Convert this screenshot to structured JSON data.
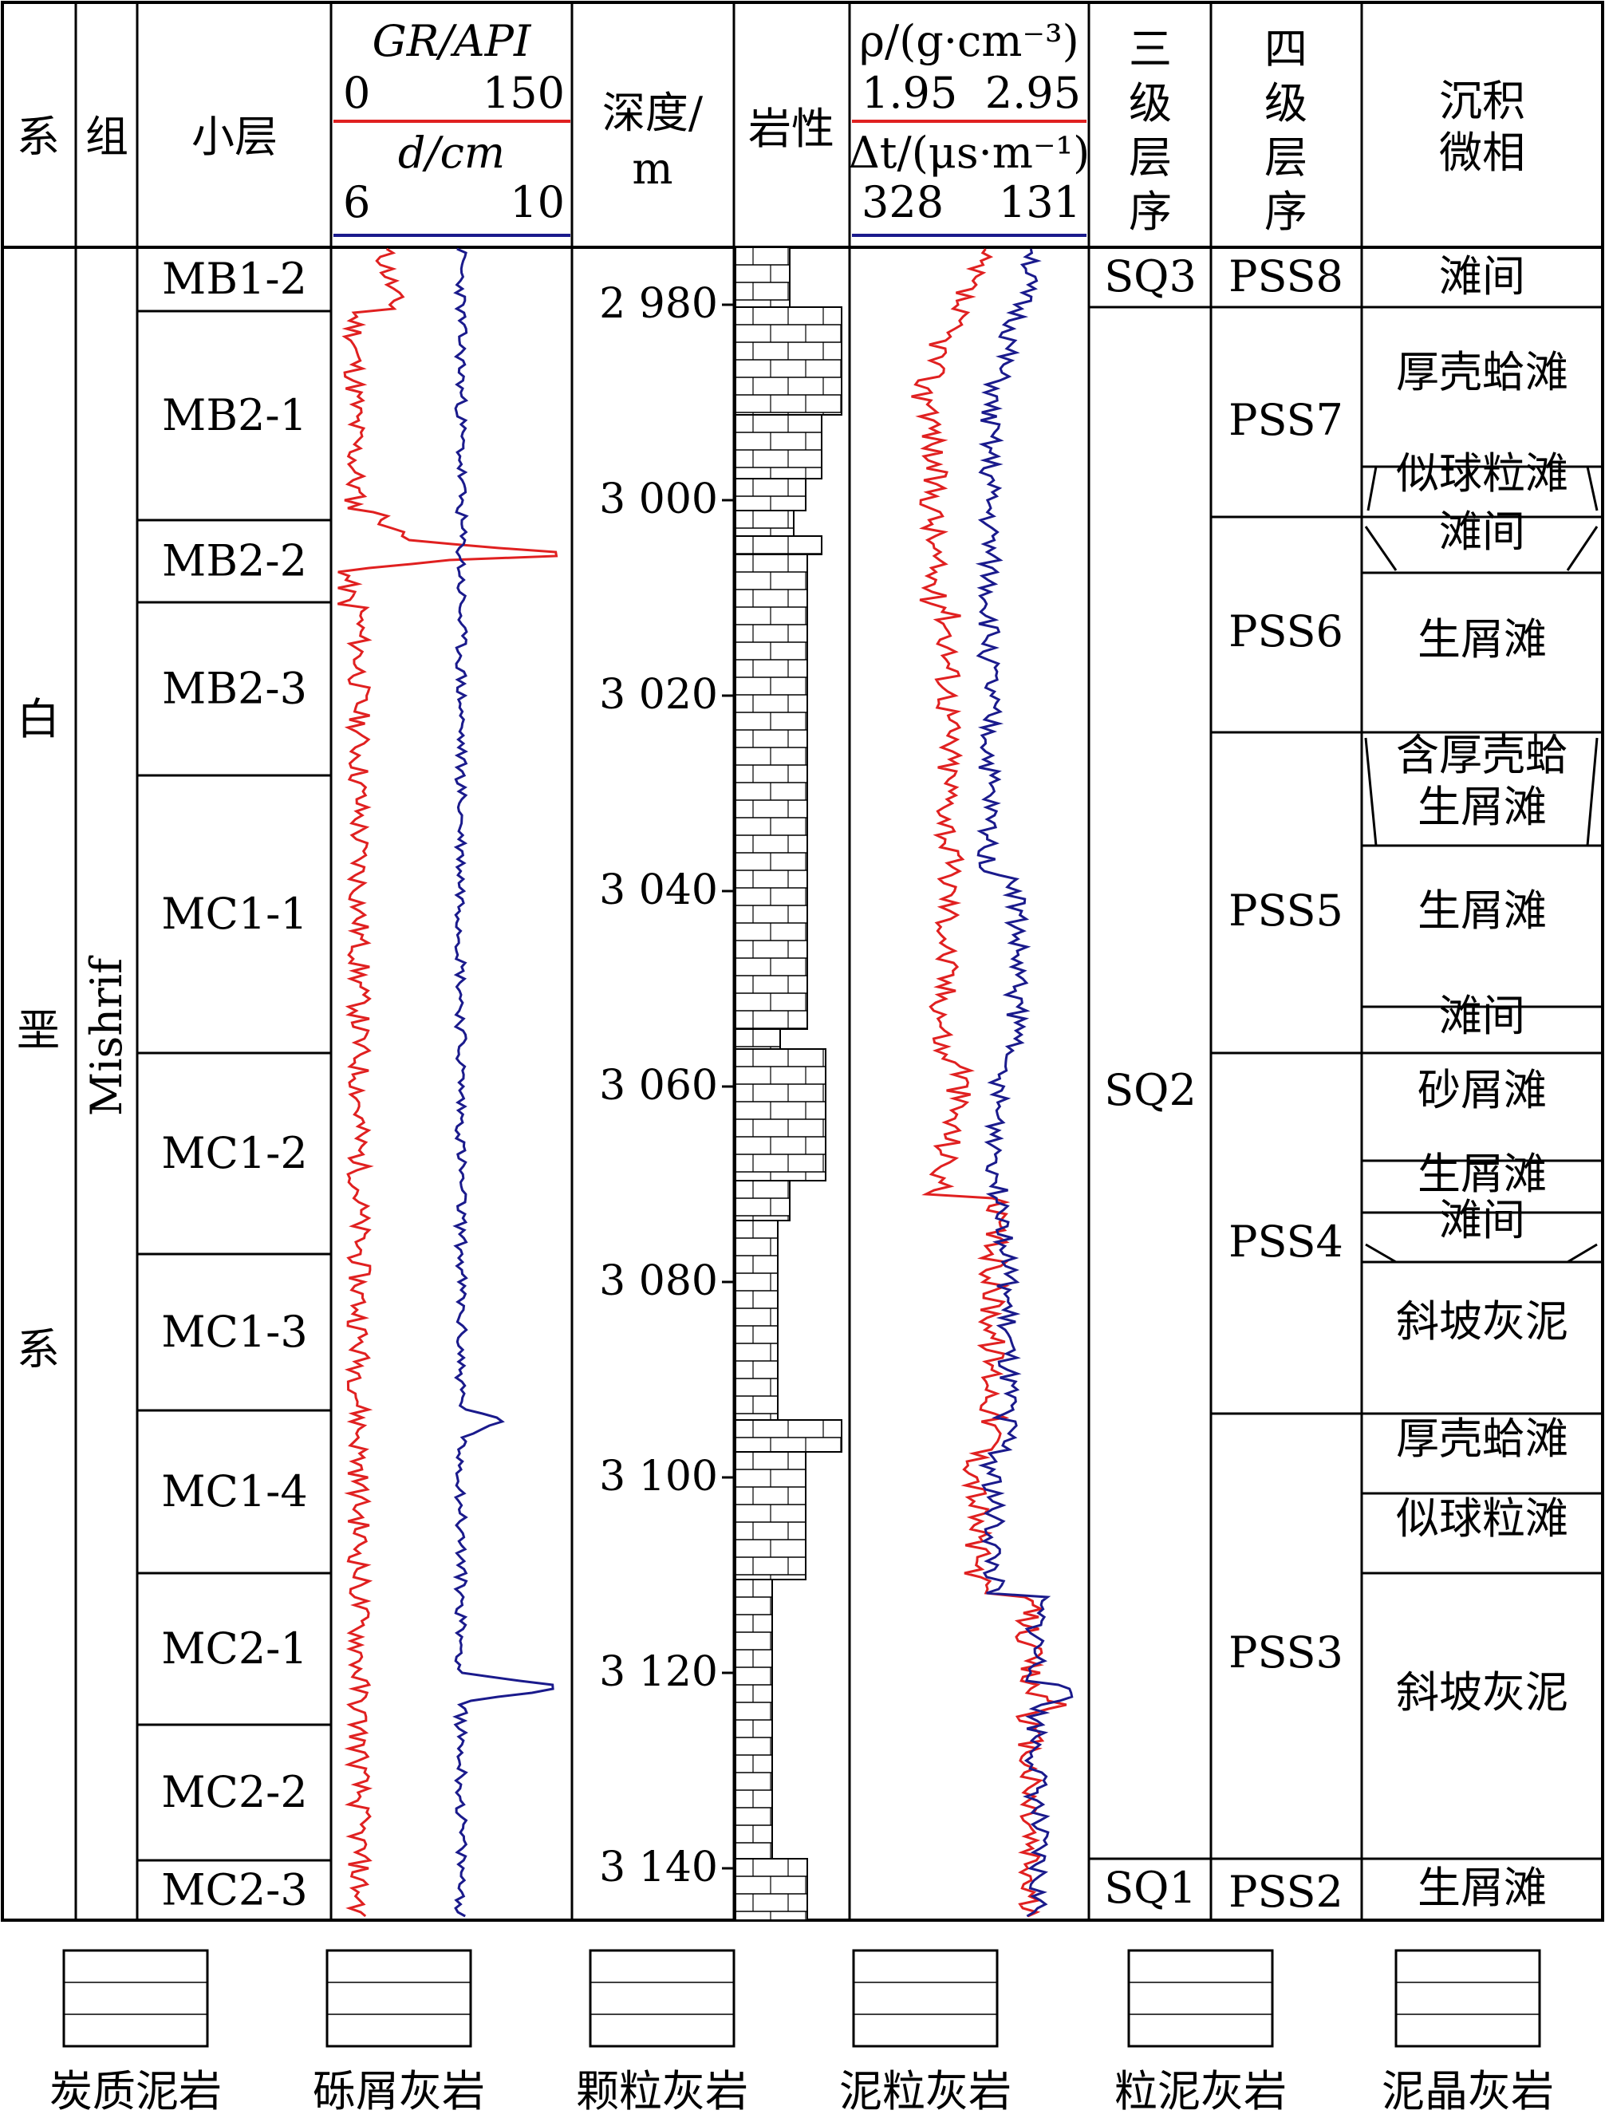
{
  "headers": {
    "system": "系",
    "group": "组",
    "sublayer": "小层",
    "gr_label": "GR/API",
    "gr_min": "0",
    "gr_max": "150",
    "d_label": "d/cm",
    "d_min": "6",
    "d_max": "10",
    "depth_label_1": "深度/",
    "depth_label_2": "m",
    "lithology": "岩性",
    "rho_label": "ρ/(g·cm⁻³)",
    "rho_min": "1.95",
    "rho_max": "2.95",
    "dt_label": "Δt/(μs·m⁻¹)",
    "dt_min": "328",
    "dt_max": "131",
    "third_order_1": "三",
    "third_order_2": "级",
    "third_order_3": "层",
    "third_order_4": "序",
    "fourth_order_1": "四",
    "fourth_order_2": "级",
    "fourth_order_3": "层",
    "fourth_order_4": "序",
    "facies_1": "沉积",
    "facies_2": "微相"
  },
  "system_chars": [
    "白",
    "垩",
    "系"
  ],
  "group_name": "Mishrif",
  "depth_ticks": [
    "2 980",
    "3 000",
    "3 020",
    "3 040",
    "3 060",
    "3 080",
    "3 100",
    "3 120",
    "3 140"
  ],
  "sublayers": [
    "MB1-2",
    "MB2-1",
    "MB2-2",
    "MB2-3",
    "MC1-1",
    "MC1-2",
    "MC1-3",
    "MC1-4",
    "MC2-1",
    "MC2-2",
    "MC2-3"
  ],
  "third_order": [
    "SQ3",
    "SQ2",
    "SQ1"
  ],
  "fourth_order": [
    "PSS8",
    "PSS7",
    "PSS6",
    "PSS5",
    "PSS4",
    "PSS3",
    "PSS2"
  ],
  "facies": [
    "滩间",
    "厚壳蛤滩",
    "似球粒滩",
    "滩间",
    "生屑滩",
    "含厚壳蛤生屑滩",
    "生屑滩",
    "滩间",
    "砂屑滩",
    "生屑滩",
    "滩间",
    "斜坡灰泥",
    "厚壳蛤滩",
    "似球粒滩",
    "斜坡灰泥",
    "生屑滩"
  ],
  "facies_lines": [
    [
      "滩间"
    ],
    [
      "厚壳蛤滩"
    ],
    [
      "似球粒滩"
    ],
    [
      "滩间"
    ],
    [
      "生屑滩"
    ],
    [
      "含厚壳蛤",
      "生屑滩"
    ],
    [
      "生屑滩"
    ],
    [
      "滩间"
    ],
    [
      "砂屑滩"
    ],
    [
      "生屑滩"
    ],
    [
      "滩间"
    ],
    [
      "斜坡灰泥"
    ],
    [
      "厚壳蛤滩"
    ],
    [
      "似球粒滩"
    ],
    [
      "斜坡灰泥"
    ],
    [
      "生屑滩"
    ]
  ],
  "legend": [
    "炭质泥岩",
    "砾屑灰岩",
    "颗粒灰岩",
    "泥粒灰岩",
    "粒泥灰岩",
    "泥晶灰岩"
  ],
  "colors": {
    "gr": "#e02020",
    "d": "#1a1a8c",
    "rho": "#e02020",
    "dt": "#1a1a8c",
    "line": "#000000"
  }
}
